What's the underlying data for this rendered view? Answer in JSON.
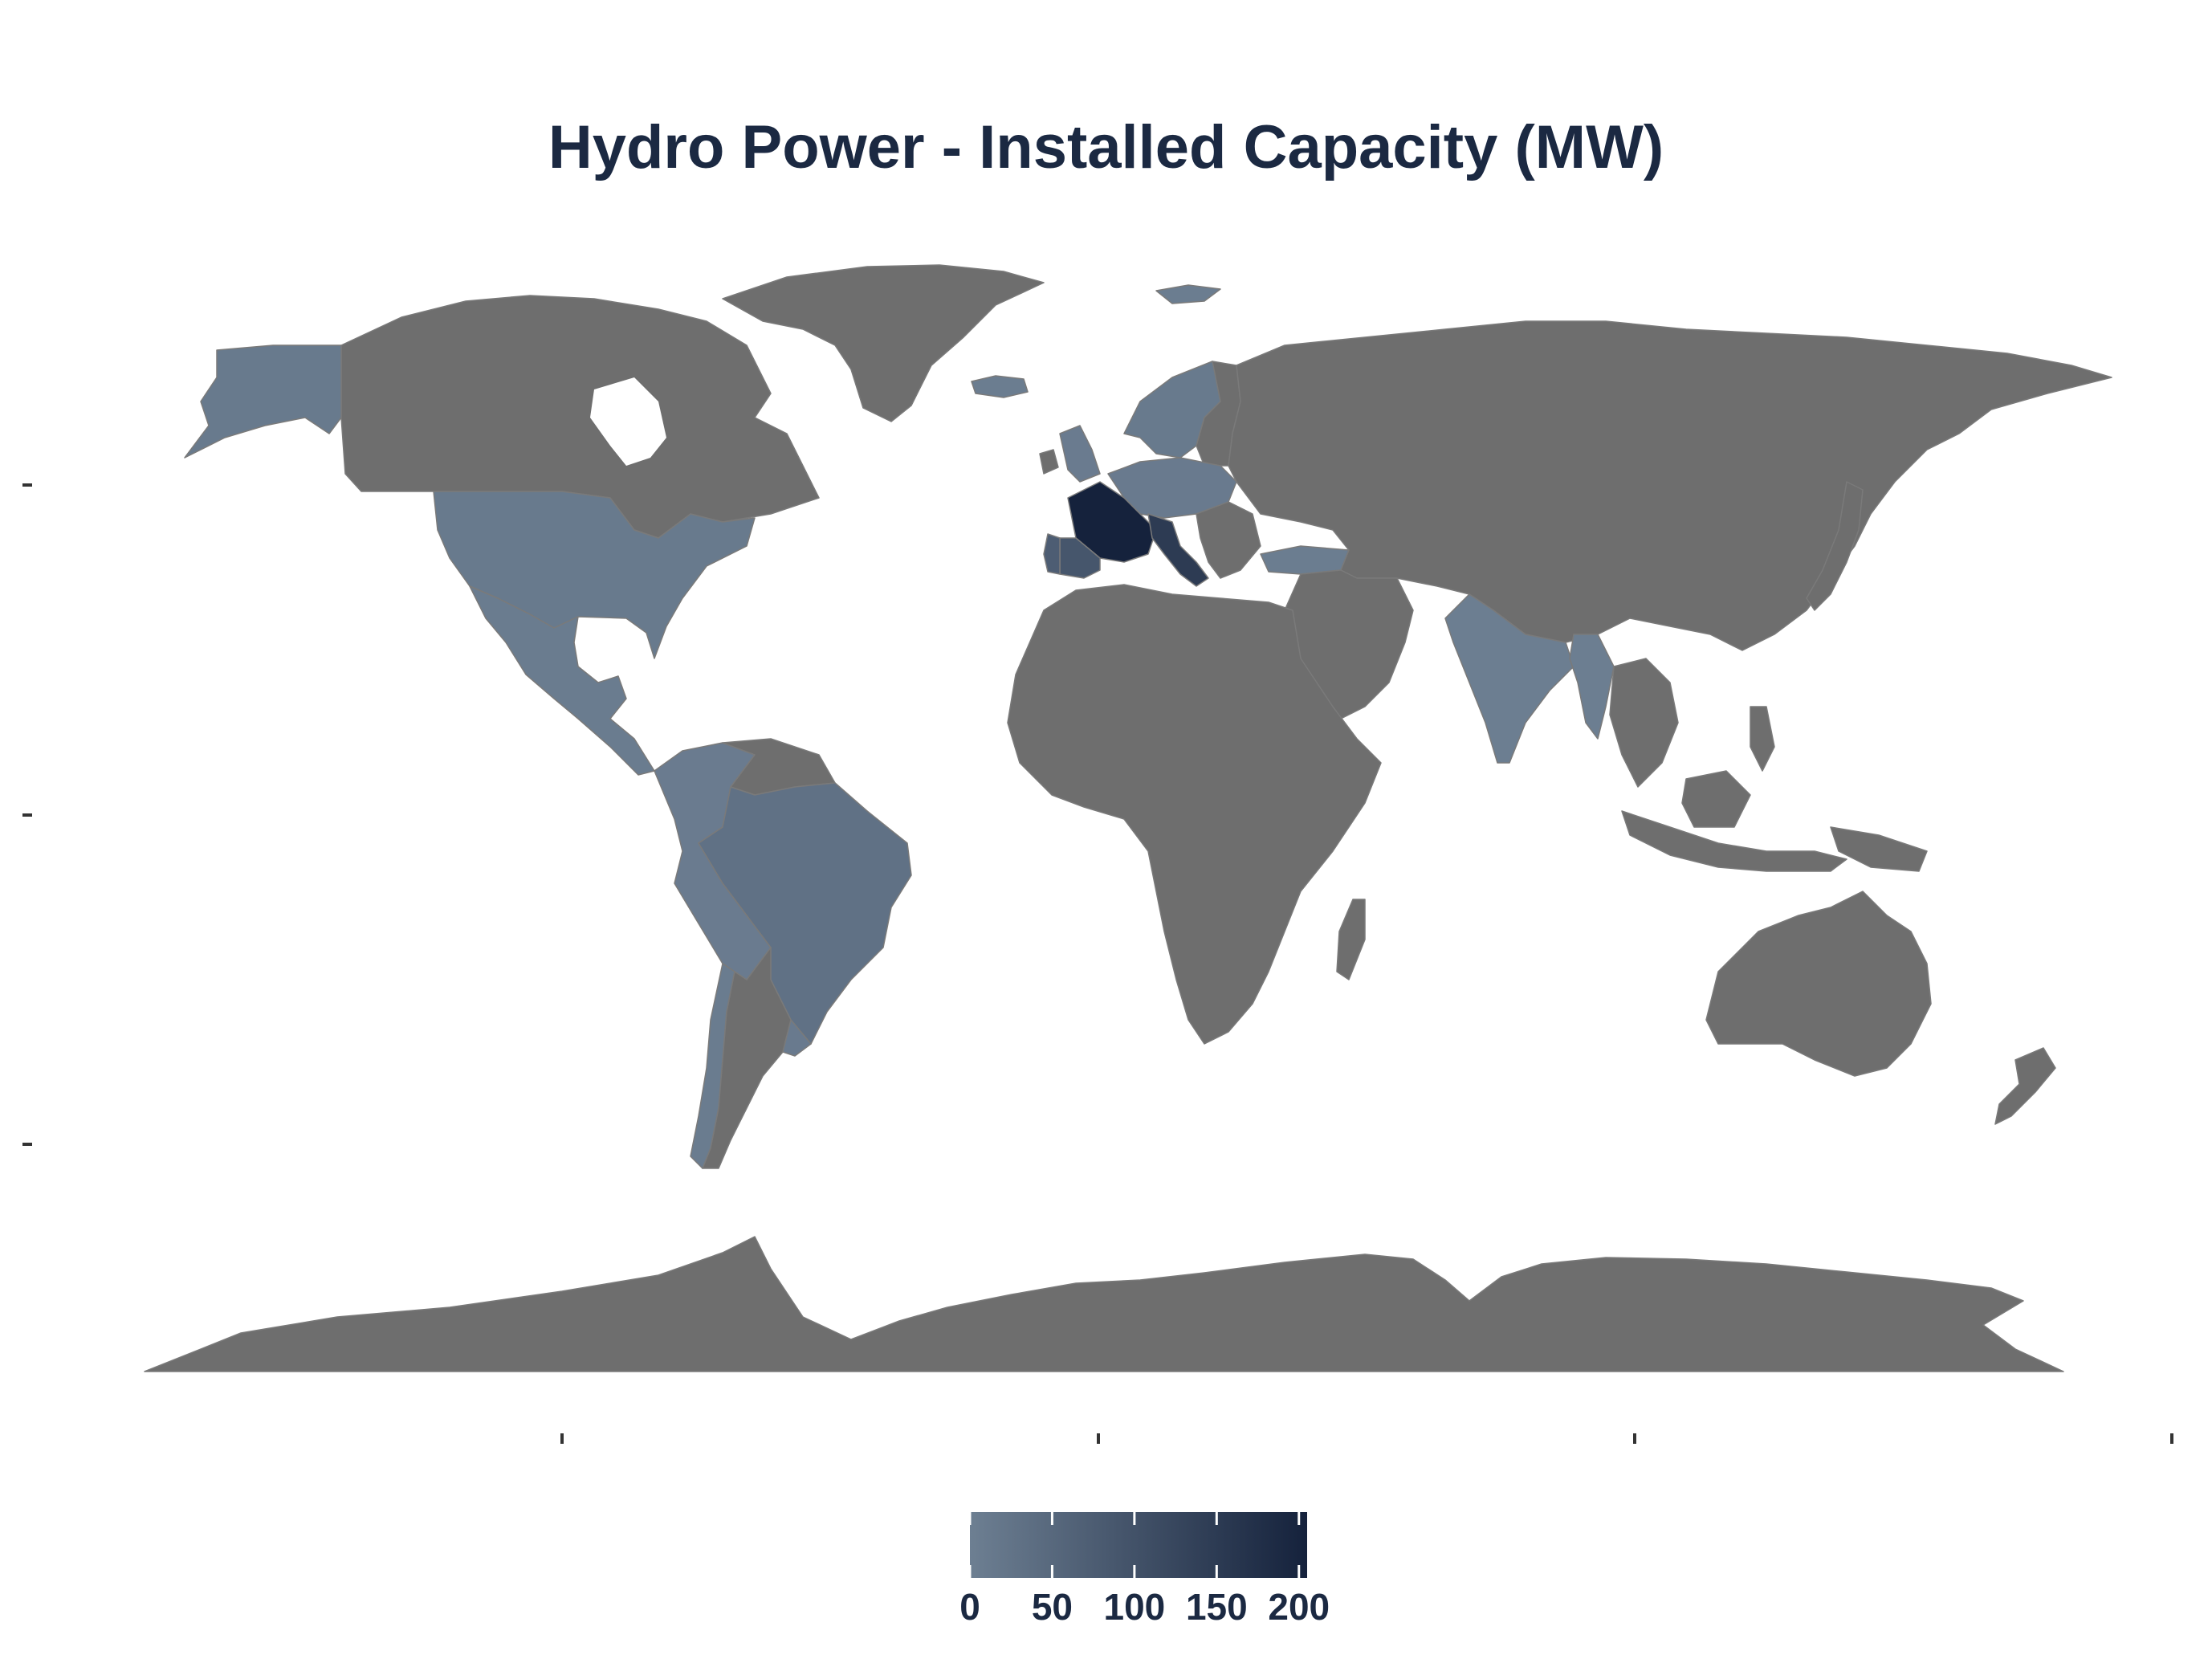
{
  "title": "Hydro Power - Installed Capacity (MW)",
  "colors": {
    "no_data": "#6e6e6e",
    "background": "#ffffff",
    "title": "#1b2942",
    "scale_low": "#6d7f92",
    "scale_high": "#15223c"
  },
  "chart_data": {
    "type": "choropleth",
    "title": "Hydro Power - Installed Capacity (MW)",
    "legend": {
      "position": "bottom",
      "min": 0,
      "max": 205,
      "breaks": [
        0,
        50,
        100,
        150,
        200
      ],
      "labels": [
        "0",
        "50",
        "100",
        "150",
        "200"
      ]
    },
    "regions": [
      {
        "name": "France",
        "value": 205
      },
      {
        "name": "Italy",
        "value": 150
      },
      {
        "name": "Spain",
        "value": 90
      },
      {
        "name": "Portugal",
        "value": 75
      },
      {
        "name": "Brazil",
        "value": 30
      },
      {
        "name": "Scandinavia",
        "value": 12
      },
      {
        "name": "United Kingdom",
        "value": 8
      },
      {
        "name": "Central Europe",
        "value": 10
      },
      {
        "name": "Turkey",
        "value": 4
      },
      {
        "name": "USA",
        "value": 12
      },
      {
        "name": "Alaska",
        "value": 12
      },
      {
        "name": "Mexico & Central America",
        "value": 6
      },
      {
        "name": "Andean countries",
        "value": 8
      },
      {
        "name": "Chile",
        "value": 6
      },
      {
        "name": "Uruguay",
        "value": 10
      },
      {
        "name": "India",
        "value": 2
      },
      {
        "name": "Myanmar",
        "value": 2
      },
      {
        "name": "Iceland",
        "value": 4
      },
      {
        "name": "Svalbard",
        "value": 4
      },
      {
        "name": "Canada",
        "value": null
      },
      {
        "name": "Greenland",
        "value": null
      },
      {
        "name": "Russia & Asia",
        "value": null
      },
      {
        "name": "Africa",
        "value": null
      },
      {
        "name": "Australia",
        "value": null
      },
      {
        "name": "Antarctica",
        "value": null
      },
      {
        "name": "Argentina",
        "value": null
      },
      {
        "name": "Arabian Peninsula",
        "value": null
      },
      {
        "name": "Southeast Asia & Indonesia",
        "value": null
      },
      {
        "name": "Japan",
        "value": null
      },
      {
        "name": "New Zealand",
        "value": null
      },
      {
        "name": "Madagascar",
        "value": null
      }
    ]
  }
}
